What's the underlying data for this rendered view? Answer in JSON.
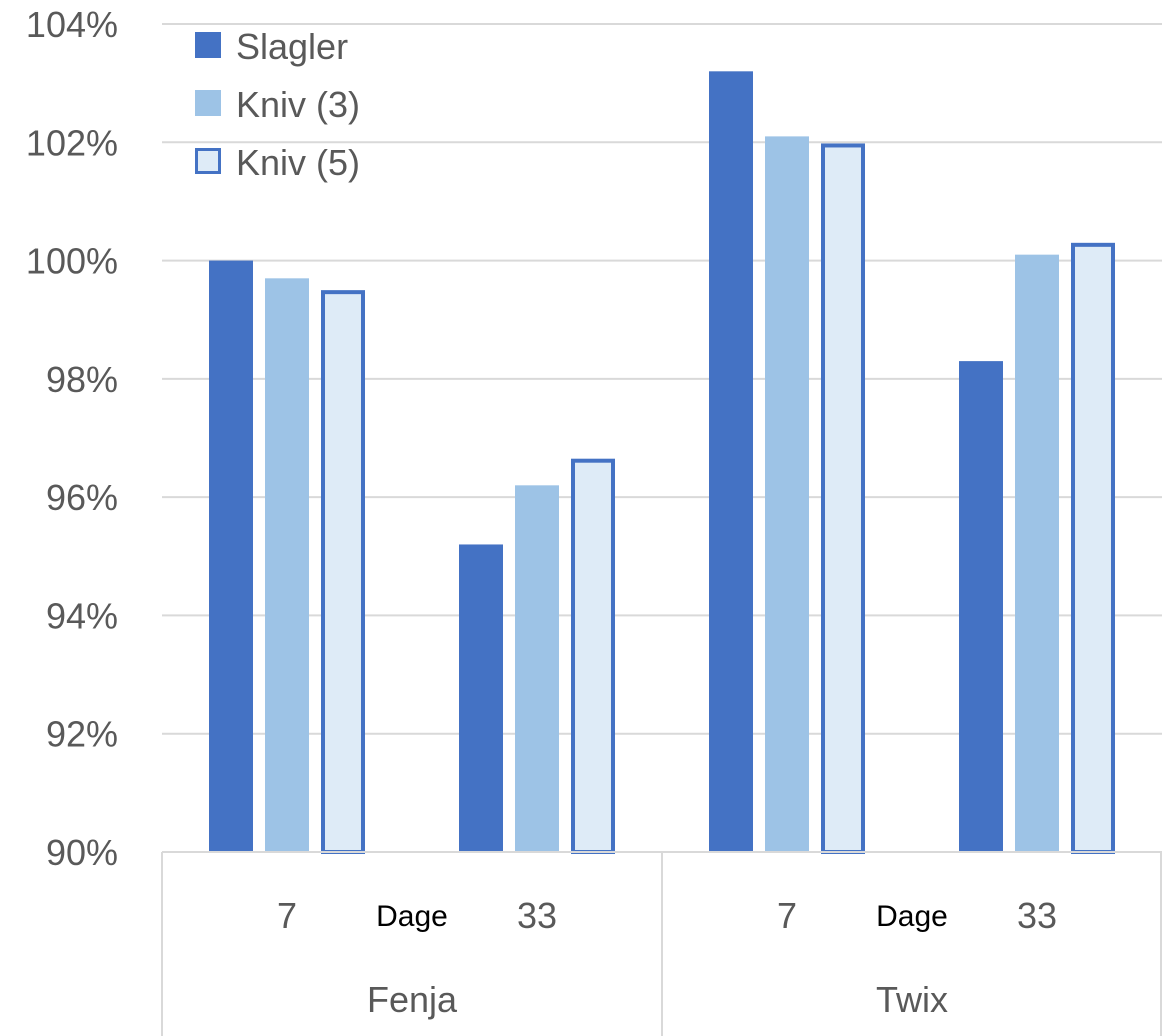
{
  "chart_data": {
    "type": "bar",
    "ylim": [
      90,
      104
    ],
    "yticks": [
      "90%",
      "92%",
      "94%",
      "96%",
      "98%",
      "100%",
      "102%",
      "104%"
    ],
    "grid": true,
    "legend_position": "top-left",
    "groups": [
      {
        "label": "Fenja",
        "sublabel": "Dage",
        "categories": [
          "7",
          "33"
        ]
      },
      {
        "label": "Twix",
        "sublabel": "Dage",
        "categories": [
          "7",
          "33"
        ]
      }
    ],
    "categories": [
      "Fenja 7",
      "Fenja 33",
      "Twix 7",
      "Twix 33"
    ],
    "series": [
      {
        "name": "Slagler",
        "color": "#4472C4",
        "values": [
          100.0,
          95.2,
          103.2,
          98.3
        ]
      },
      {
        "name": "Kniv (3)",
        "color": "#9DC3E6",
        "values": [
          99.7,
          96.2,
          102.1,
          100.1
        ]
      },
      {
        "name": "Kniv (5)",
        "color": "#DEEBF7",
        "stroke": "#4472C4",
        "values": [
          99.5,
          96.65,
          101.98,
          100.3
        ]
      }
    ]
  }
}
